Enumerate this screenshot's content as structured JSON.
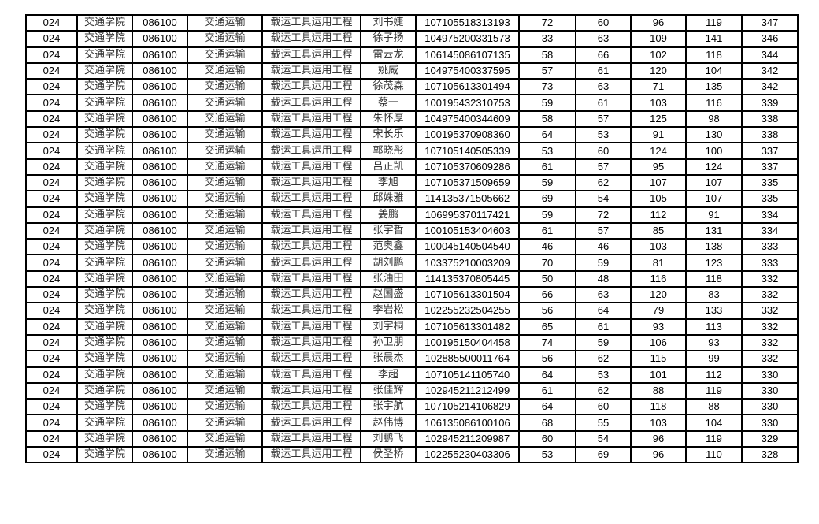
{
  "rows": [
    [
      "024",
      "交通学院",
      "086100",
      "交通运输",
      "载运工具运用工程",
      "刘书婕",
      "107105518313193",
      "72",
      "60",
      "96",
      "119",
      "347"
    ],
    [
      "024",
      "交通学院",
      "086100",
      "交通运输",
      "载运工具运用工程",
      "徐子扬",
      "104975200331573",
      "33",
      "63",
      "109",
      "141",
      "346"
    ],
    [
      "024",
      "交通学院",
      "086100",
      "交通运输",
      "载运工具运用工程",
      "雷云龙",
      "106145086107135",
      "58",
      "66",
      "102",
      "118",
      "344"
    ],
    [
      "024",
      "交通学院",
      "086100",
      "交通运输",
      "载运工具运用工程",
      "姚威",
      "104975400337595",
      "57",
      "61",
      "120",
      "104",
      "342"
    ],
    [
      "024",
      "交通学院",
      "086100",
      "交通运输",
      "载运工具运用工程",
      "徐茂森",
      "107105613301494",
      "73",
      "63",
      "71",
      "135",
      "342"
    ],
    [
      "024",
      "交通学院",
      "086100",
      "交通运输",
      "载运工具运用工程",
      "蔡一",
      "100195432310753",
      "59",
      "61",
      "103",
      "116",
      "339"
    ],
    [
      "024",
      "交通学院",
      "086100",
      "交通运输",
      "载运工具运用工程",
      "朱怀厚",
      "104975400344609",
      "58",
      "57",
      "125",
      "98",
      "338"
    ],
    [
      "024",
      "交通学院",
      "086100",
      "交通运输",
      "载运工具运用工程",
      "宋长乐",
      "100195370908360",
      "64",
      "53",
      "91",
      "130",
      "338"
    ],
    [
      "024",
      "交通学院",
      "086100",
      "交通运输",
      "载运工具运用工程",
      "郭晓彤",
      "107105140505339",
      "53",
      "60",
      "124",
      "100",
      "337"
    ],
    [
      "024",
      "交通学院",
      "086100",
      "交通运输",
      "载运工具运用工程",
      "吕正凯",
      "107105370609286",
      "61",
      "57",
      "95",
      "124",
      "337"
    ],
    [
      "024",
      "交通学院",
      "086100",
      "交通运输",
      "载运工具运用工程",
      "李旭",
      "107105371509659",
      "59",
      "62",
      "107",
      "107",
      "335"
    ],
    [
      "024",
      "交通学院",
      "086100",
      "交通运输",
      "载运工具运用工程",
      "邱姝雅",
      "114135371505662",
      "69",
      "54",
      "105",
      "107",
      "335"
    ],
    [
      "024",
      "交通学院",
      "086100",
      "交通运输",
      "载运工具运用工程",
      "姜鹏",
      "106995370117421",
      "59",
      "72",
      "112",
      "91",
      "334"
    ],
    [
      "024",
      "交通学院",
      "086100",
      "交通运输",
      "载运工具运用工程",
      "张宇哲",
      "100105153404603",
      "61",
      "57",
      "85",
      "131",
      "334"
    ],
    [
      "024",
      "交通学院",
      "086100",
      "交通运输",
      "载运工具运用工程",
      "范奥鑫",
      "100045140504540",
      "46",
      "46",
      "103",
      "138",
      "333"
    ],
    [
      "024",
      "交通学院",
      "086100",
      "交通运输",
      "载运工具运用工程",
      "胡刘鹏",
      "103375210003209",
      "70",
      "59",
      "81",
      "123",
      "333"
    ],
    [
      "024",
      "交通学院",
      "086100",
      "交通运输",
      "载运工具运用工程",
      "张油田",
      "114135370805445",
      "50",
      "48",
      "116",
      "118",
      "332"
    ],
    [
      "024",
      "交通学院",
      "086100",
      "交通运输",
      "载运工具运用工程",
      "赵国盛",
      "107105613301504",
      "66",
      "63",
      "120",
      "83",
      "332"
    ],
    [
      "024",
      "交通学院",
      "086100",
      "交通运输",
      "载运工具运用工程",
      "李岩松",
      "102255232504255",
      "56",
      "64",
      "79",
      "133",
      "332"
    ],
    [
      "024",
      "交通学院",
      "086100",
      "交通运输",
      "载运工具运用工程",
      "刘宇桐",
      "107105613301482",
      "65",
      "61",
      "93",
      "113",
      "332"
    ],
    [
      "024",
      "交通学院",
      "086100",
      "交通运输",
      "载运工具运用工程",
      "孙卫朋",
      "100195150404458",
      "74",
      "59",
      "106",
      "93",
      "332"
    ],
    [
      "024",
      "交通学院",
      "086100",
      "交通运输",
      "载运工具运用工程",
      "张晨杰",
      "102885500011764",
      "56",
      "62",
      "115",
      "99",
      "332"
    ],
    [
      "024",
      "交通学院",
      "086100",
      "交通运输",
      "载运工具运用工程",
      "李超",
      "107105141105740",
      "64",
      "53",
      "101",
      "112",
      "330"
    ],
    [
      "024",
      "交通学院",
      "086100",
      "交通运输",
      "载运工具运用工程",
      "张佳辉",
      "102945211212499",
      "61",
      "62",
      "88",
      "119",
      "330"
    ],
    [
      "024",
      "交通学院",
      "086100",
      "交通运输",
      "载运工具运用工程",
      "张宇航",
      "107105214106829",
      "64",
      "60",
      "118",
      "88",
      "330"
    ],
    [
      "024",
      "交通学院",
      "086100",
      "交通运输",
      "载运工具运用工程",
      "赵伟博",
      "106135086100106",
      "68",
      "55",
      "103",
      "104",
      "330"
    ],
    [
      "024",
      "交通学院",
      "086100",
      "交通运输",
      "载运工具运用工程",
      "刘鹏飞",
      "102945211209987",
      "60",
      "54",
      "96",
      "119",
      "329"
    ],
    [
      "024",
      "交通学院",
      "086100",
      "交通运输",
      "载运工具运用工程",
      "侯圣桥",
      "102255230403306",
      "53",
      "69",
      "96",
      "110",
      "328"
    ]
  ]
}
